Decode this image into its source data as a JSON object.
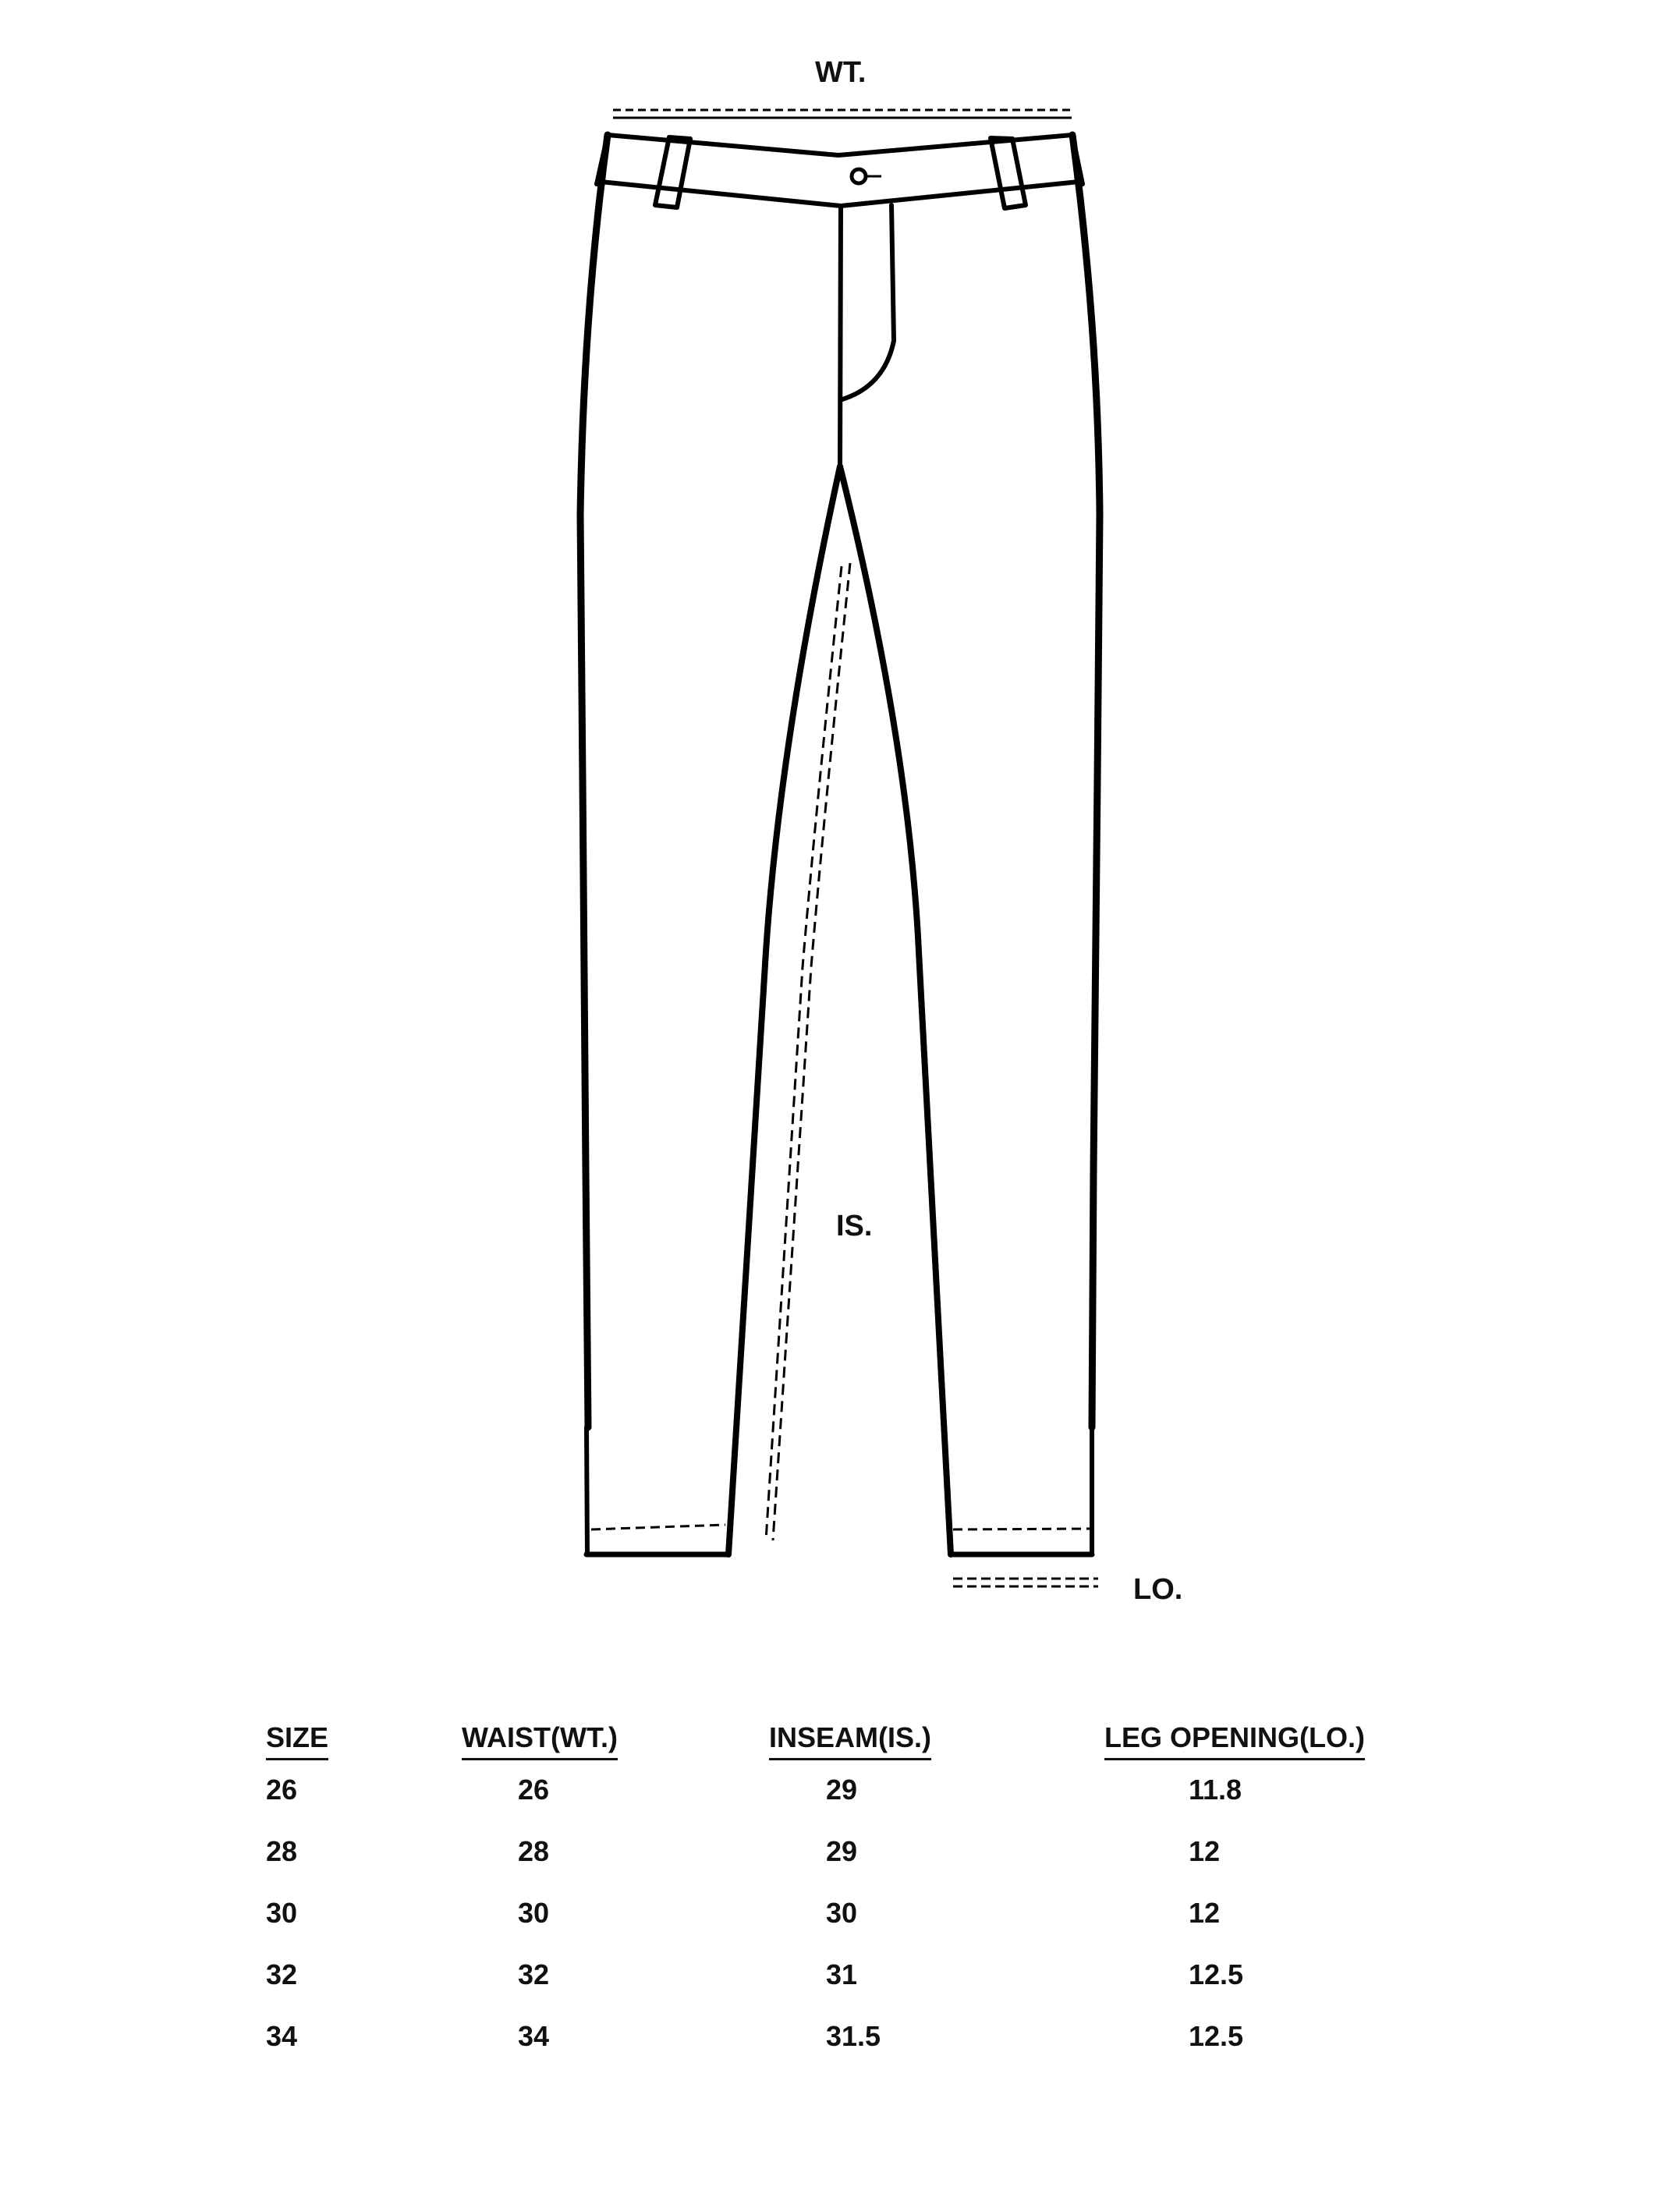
{
  "diagram": {
    "labels": {
      "waist": "WT.",
      "inseam": "IS.",
      "leg_opening": "LO."
    },
    "icons": [
      "pants-outline-icon",
      "measure-line-icon",
      "button-icon"
    ],
    "line_color": "#000000"
  },
  "size_table": {
    "headers": [
      "SIZE",
      "WAIST(WT.)",
      "INSEAM(IS.)",
      "LEG OPENING(LO.)"
    ],
    "rows": [
      [
        "26",
        "26",
        "29",
        "11.8"
      ],
      [
        "28",
        "28",
        "29",
        "12"
      ],
      [
        "30",
        "30",
        "30",
        "12"
      ],
      [
        "32",
        "32",
        "31",
        "12.5"
      ],
      [
        "34",
        "34",
        "31.5",
        "12.5"
      ]
    ]
  }
}
